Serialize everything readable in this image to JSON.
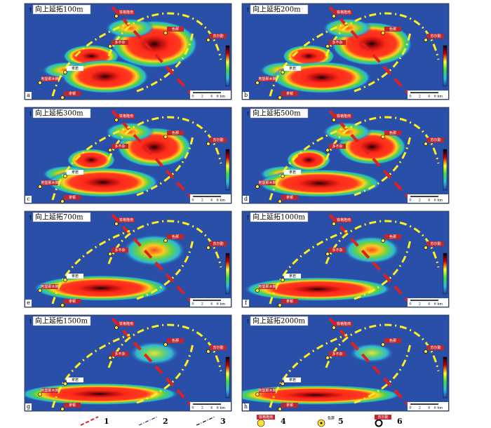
{
  "panels": [
    {
      "title": "向上延拓100m",
      "letter": "a"
    },
    {
      "title": "向上延拓200m",
      "letter": "b"
    },
    {
      "title": "向上延拓300m",
      "letter": "c"
    },
    {
      "title": "向上延拓500m",
      "letter": "d"
    },
    {
      "title": "向上延拓700m",
      "letter": "e"
    },
    {
      "title": "向上延拓1000m",
      "letter": "f"
    },
    {
      "title": "向上延拓1500m",
      "letter": "g"
    },
    {
      "title": "向上延拓2000m",
      "letter": "h"
    }
  ],
  "place_labels": [
    "铁格隆南",
    "色那",
    "多不杂",
    "苏尔勤",
    "拿若",
    "地堡那木岗",
    "拿顿"
  ],
  "scale_bar": [
    "0",
    "2",
    "4",
    "6 km"
  ],
  "legend": [
    {
      "number": "1"
    },
    {
      "number": "2"
    },
    {
      "number": "3"
    },
    {
      "number": "4",
      "label": "铁格隆南"
    },
    {
      "number": "5",
      "label": "色那"
    },
    {
      "number": "6",
      "label": "苏尔勤"
    }
  ]
}
